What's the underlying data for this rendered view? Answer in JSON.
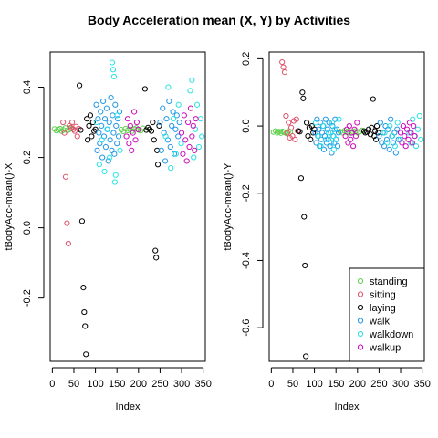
{
  "title": "Body Acceleration mean (X, Y) by Activities",
  "chart_data": [
    {
      "type": "scatter",
      "xlabel": "Index",
      "ylabel": "tBodyAcc-mean()-X",
      "xlim": [
        -5,
        355
      ],
      "ylim": [
        -0.38,
        0.5
      ],
      "xticks": [
        0,
        50,
        100,
        150,
        200,
        250,
        300,
        350
      ],
      "xtick_labels": [
        "0",
        "50",
        "100",
        "150",
        "200",
        "250",
        "300",
        "350"
      ],
      "yticks": [
        -0.2,
        0.0,
        0.2,
        0.4
      ],
      "ytick_labels": [
        "-0.2",
        "0.0",
        "0.2",
        "0.4"
      ],
      "grid": false,
      "legend": false
    },
    {
      "type": "scatter",
      "xlabel": "Index",
      "ylabel": "tBodyAcc-mean()-Y",
      "xlim": [
        -5,
        355
      ],
      "ylim": [
        -0.7,
        0.22
      ],
      "xticks": [
        0,
        50,
        100,
        150,
        200,
        250,
        300,
        350
      ],
      "xtick_labels": [
        "0",
        "50",
        "100",
        "150",
        "200",
        "250",
        "300",
        "350"
      ],
      "yticks": [
        -0.6,
        -0.4,
        -0.2,
        0.0,
        0.2
      ],
      "ytick_labels": [
        "-0.6",
        "-0.4",
        "-0.2",
        "0.0",
        "0.2"
      ],
      "grid": false,
      "legend": "bottom-right"
    }
  ],
  "series": [
    {
      "name": "standing",
      "color": "#61D04F"
    },
    {
      "name": "sitting",
      "color": "#DF536B"
    },
    {
      "name": "laying",
      "color": "#000000"
    },
    {
      "name": "walk",
      "color": "#2297E6"
    },
    {
      "name": "walkdown",
      "color": "#28E2E5"
    },
    {
      "name": "walkup",
      "color": "#CD0BBC"
    }
  ],
  "points": [
    {
      "x": 5,
      "yx": 0.281,
      "yy": -0.018,
      "s": 0
    },
    {
      "x": 10,
      "yx": 0.276,
      "yy": -0.015,
      "s": 0
    },
    {
      "x": 14,
      "yx": 0.279,
      "yy": -0.02,
      "s": 0
    },
    {
      "x": 18,
      "yx": 0.282,
      "yy": -0.017,
      "s": 0
    },
    {
      "x": 22,
      "yx": 0.275,
      "yy": -0.021,
      "s": 0
    },
    {
      "x": 26,
      "yx": 0.278,
      "yy": -0.016,
      "s": 0
    },
    {
      "x": 30,
      "yx": 0.284,
      "yy": -0.019,
      "s": 0
    },
    {
      "x": 35,
      "yx": 0.277,
      "yy": -0.022,
      "s": 0
    },
    {
      "x": 40,
      "yx": 0.28,
      "yy": -0.015,
      "s": 0
    },
    {
      "x": 44,
      "yx": 0.283,
      "yy": -0.018,
      "s": 0
    },
    {
      "x": 160,
      "yx": 0.279,
      "yy": -0.017,
      "s": 0
    },
    {
      "x": 165,
      "yx": 0.274,
      "yy": -0.02,
      "s": 0
    },
    {
      "x": 170,
      "yx": 0.282,
      "yy": -0.014,
      "s": 0
    },
    {
      "x": 175,
      "yx": 0.277,
      "yy": -0.019,
      "s": 0
    },
    {
      "x": 180,
      "yx": 0.28,
      "yy": -0.016,
      "s": 0
    },
    {
      "x": 185,
      "yx": 0.275,
      "yy": -0.021,
      "s": 0
    },
    {
      "x": 190,
      "yx": 0.281,
      "yy": -0.018,
      "s": 0
    },
    {
      "x": 195,
      "yx": 0.284,
      "yy": -0.015,
      "s": 0
    },
    {
      "x": 200,
      "yx": 0.278,
      "yy": -0.02,
      "s": 0
    },
    {
      "x": 205,
      "yx": 0.276,
      "yy": -0.017,
      "s": 0
    },
    {
      "x": 210,
      "yx": 0.283,
      "yy": -0.013,
      "s": 0
    },
    {
      "x": 25,
      "yx": 0.3,
      "yy": 0.19,
      "s": 1
    },
    {
      "x": 28,
      "yx": 0.27,
      "yy": 0.175,
      "s": 1
    },
    {
      "x": 31,
      "yx": 0.145,
      "yy": 0.16,
      "s": 1
    },
    {
      "x": 34,
      "yx": 0.013,
      "yy": 0.03,
      "s": 1
    },
    {
      "x": 37,
      "yx": -0.045,
      "yy": -0.02,
      "s": 1
    },
    {
      "x": 40,
      "yx": 0.29,
      "yy": 0.01,
      "s": 1
    },
    {
      "x": 43,
      "yx": 0.285,
      "yy": -0.035,
      "s": 1
    },
    {
      "x": 46,
      "yx": 0.3,
      "yy": -0.005,
      "s": 1
    },
    {
      "x": 49,
      "yx": 0.28,
      "yy": -0.03,
      "s": 1
    },
    {
      "x": 52,
      "yx": 0.275,
      "yy": 0.015,
      "s": 1
    },
    {
      "x": 55,
      "yx": 0.288,
      "yy": -0.04,
      "s": 1
    },
    {
      "x": 58,
      "yx": 0.26,
      "yy": 0.02,
      "s": 1
    },
    {
      "x": 61,
      "yx": 0.282,
      "yy": -0.015,
      "s": 1
    },
    {
      "x": 63,
      "yx": 0.405,
      "yy": -0.015,
      "s": 2
    },
    {
      "x": 66,
      "yx": 0.278,
      "yy": -0.017,
      "s": 2
    },
    {
      "x": 69,
      "yx": 0.019,
      "yy": -0.155,
      "s": 2
    },
    {
      "x": 72,
      "yx": -0.17,
      "yy": 0.1,
      "s": 2
    },
    {
      "x": 74,
      "yx": -0.24,
      "yy": 0.082,
      "s": 2
    },
    {
      "x": 76,
      "yx": -0.28,
      "yy": -0.27,
      "s": 2
    },
    {
      "x": 78,
      "yx": -0.36,
      "yy": -0.415,
      "s": 2
    },
    {
      "x": 80,
      "yx": 0.31,
      "yy": -0.685,
      "s": 2
    },
    {
      "x": 82,
      "yx": 0.25,
      "yy": 0.01,
      "s": 2
    },
    {
      "x": 85,
      "yx": 0.29,
      "yy": -0.03,
      "s": 2
    },
    {
      "x": 88,
      "yx": 0.32,
      "yy": -0.005,
      "s": 2
    },
    {
      "x": 91,
      "yx": 0.26,
      "yy": -0.04,
      "s": 2
    },
    {
      "x": 94,
      "yx": 0.3,
      "yy": 0.0,
      "s": 2
    },
    {
      "x": 97,
      "yx": 0.275,
      "yy": -0.02,
      "s": 2
    },
    {
      "x": 100,
      "yx": 0.28,
      "yy": -0.01,
      "s": 2
    },
    {
      "x": 215,
      "yx": 0.395,
      "yy": -0.015,
      "s": 2
    },
    {
      "x": 218,
      "yx": 0.278,
      "yy": -0.02,
      "s": 2
    },
    {
      "x": 222,
      "yx": 0.285,
      "yy": -0.018,
      "s": 2
    },
    {
      "x": 226,
      "yx": 0.28,
      "yy": -0.01,
      "s": 2
    },
    {
      "x": 230,
      "yx": 0.275,
      "yy": -0.025,
      "s": 2
    },
    {
      "x": 233,
      "yx": 0.3,
      "yy": -0.005,
      "s": 2
    },
    {
      "x": 236,
      "yx": 0.25,
      "yy": 0.08,
      "s": 2
    },
    {
      "x": 239,
      "yx": -0.065,
      "yy": -0.03,
      "s": 2
    },
    {
      "x": 241,
      "yx": -0.085,
      "yy": -0.015,
      "s": 2
    },
    {
      "x": 243,
      "yx": 0.22,
      "yy": -0.04,
      "s": 2
    },
    {
      "x": 245,
      "yx": 0.18,
      "yy": 0.0,
      "s": 2
    },
    {
      "x": 248,
      "yx": 0.29,
      "yy": -0.02,
      "s": 2
    },
    {
      "x": 102,
      "yx": 0.35,
      "yy": -0.02,
      "s": 3
    },
    {
      "x": 104,
      "yx": 0.22,
      "yy": -0.05,
      "s": 3
    },
    {
      "x": 106,
      "yx": 0.31,
      "yy": 0.02,
      "s": 3
    },
    {
      "x": 108,
      "yx": 0.27,
      "yy": -0.03,
      "s": 3
    },
    {
      "x": 110,
      "yx": 0.24,
      "yy": -0.01,
      "s": 3
    },
    {
      "x": 112,
      "yx": 0.33,
      "yy": -0.06,
      "s": 3
    },
    {
      "x": 114,
      "yx": 0.29,
      "yy": 0.01,
      "s": 3
    },
    {
      "x": 116,
      "yx": 0.2,
      "yy": -0.04,
      "s": 3
    },
    {
      "x": 118,
      "yx": 0.36,
      "yy": -0.02,
      "s": 3
    },
    {
      "x": 120,
      "yx": 0.26,
      "yy": 0.0,
      "s": 3
    },
    {
      "x": 122,
      "yx": 0.31,
      "yy": -0.07,
      "s": 3
    },
    {
      "x": 124,
      "yx": 0.23,
      "yy": -0.03,
      "s": 3
    },
    {
      "x": 126,
      "yx": 0.34,
      "yy": 0.02,
      "s": 3
    },
    {
      "x": 128,
      "yx": 0.28,
      "yy": -0.05,
      "s": 3
    },
    {
      "x": 130,
      "yx": 0.19,
      "yy": -0.01,
      "s": 3
    },
    {
      "x": 132,
      "yx": 0.3,
      "yy": -0.04,
      "s": 3
    },
    {
      "x": 134,
      "yx": 0.25,
      "yy": 0.01,
      "s": 3
    },
    {
      "x": 136,
      "yx": 0.37,
      "yy": -0.06,
      "s": 3
    },
    {
      "x": 138,
      "yx": 0.22,
      "yy": -0.02,
      "s": 3
    },
    {
      "x": 140,
      "yx": 0.32,
      "yy": -0.08,
      "s": 3
    },
    {
      "x": 142,
      "yx": 0.27,
      "yy": 0.0,
      "s": 3
    },
    {
      "x": 144,
      "yx": 0.21,
      "yy": -0.03,
      "s": 3
    },
    {
      "x": 146,
      "yx": 0.35,
      "yy": -0.05,
      "s": 3
    },
    {
      "x": 148,
      "yx": 0.29,
      "yy": 0.02,
      "s": 3
    },
    {
      "x": 150,
      "yx": 0.24,
      "yy": -0.04,
      "s": 3
    },
    {
      "x": 152,
      "yx": 0.31,
      "yy": -0.01,
      "s": 3
    },
    {
      "x": 154,
      "yx": 0.26,
      "yy": -0.06,
      "s": 3
    },
    {
      "x": 156,
      "yx": 0.33,
      "yy": -0.02,
      "s": 3
    },
    {
      "x": 250,
      "yx": 0.3,
      "yy": -0.03,
      "s": 3
    },
    {
      "x": 253,
      "yx": 0.22,
      "yy": 0.01,
      "s": 3
    },
    {
      "x": 256,
      "yx": 0.34,
      "yy": -0.05,
      "s": 3
    },
    {
      "x": 259,
      "yx": 0.27,
      "yy": -0.02,
      "s": 3
    },
    {
      "x": 262,
      "yx": 0.19,
      "yy": -0.06,
      "s": 3
    },
    {
      "x": 265,
      "yx": 0.31,
      "yy": 0.0,
      "s": 3
    },
    {
      "x": 268,
      "yx": 0.25,
      "yy": -0.04,
      "s": 3
    },
    {
      "x": 271,
      "yx": 0.36,
      "yy": -0.01,
      "s": 3
    },
    {
      "x": 274,
      "yx": 0.23,
      "yy": -0.07,
      "s": 3
    },
    {
      "x": 277,
      "yx": 0.29,
      "yy": 0.02,
      "s": 3
    },
    {
      "x": 280,
      "yx": 0.33,
      "yy": -0.03,
      "s": 3
    },
    {
      "x": 283,
      "yx": 0.21,
      "yy": -0.05,
      "s": 3
    },
    {
      "x": 286,
      "yx": 0.28,
      "yy": -0.02,
      "s": 3
    },
    {
      "x": 289,
      "yx": 0.32,
      "yy": -0.08,
      "s": 3
    },
    {
      "x": 292,
      "yx": 0.26,
      "yy": -0.01,
      "s": 3
    },
    {
      "x": 295,
      "yx": 0.3,
      "yy": -0.04,
      "s": 3
    },
    {
      "x": 103,
      "yx": 0.3,
      "yy": 0.01,
      "s": 4
    },
    {
      "x": 109,
      "yx": 0.18,
      "yy": -0.03,
      "s": 4
    },
    {
      "x": 115,
      "yx": 0.25,
      "yy": -0.06,
      "s": 4
    },
    {
      "x": 121,
      "yx": 0.16,
      "yy": 0.0,
      "s": 4
    },
    {
      "x": 127,
      "yx": 0.28,
      "yy": -0.04,
      "s": 4
    },
    {
      "x": 133,
      "yx": 0.2,
      "yy": -0.02,
      "s": 4
    },
    {
      "x": 139,
      "yx": 0.47,
      "yy": -0.05,
      "s": 4
    },
    {
      "x": 141,
      "yx": 0.45,
      "yy": 0.01,
      "s": 4
    },
    {
      "x": 143,
      "yx": 0.43,
      "yy": -0.03,
      "s": 4
    },
    {
      "x": 145,
      "yx": 0.13,
      "yy": -0.07,
      "s": 4
    },
    {
      "x": 147,
      "yx": 0.15,
      "yy": -0.01,
      "s": 4
    },
    {
      "x": 151,
      "yx": 0.32,
      "yy": -0.04,
      "s": 4
    },
    {
      "x": 157,
      "yx": 0.22,
      "yy": 0.02,
      "s": 4
    },
    {
      "x": 263,
      "yx": 0.26,
      "yy": -0.02,
      "s": 4
    },
    {
      "x": 269,
      "yx": 0.4,
      "yy": -0.05,
      "s": 4
    },
    {
      "x": 275,
      "yx": 0.17,
      "yy": 0.0,
      "s": 4
    },
    {
      "x": 281,
      "yx": 0.31,
      "yy": -0.03,
      "s": 4
    },
    {
      "x": 287,
      "yx": 0.21,
      "yy": -0.06,
      "s": 4
    },
    {
      "x": 293,
      "yx": 0.35,
      "yy": 0.01,
      "s": 4
    },
    {
      "x": 299,
      "yx": 0.24,
      "yy": -0.04,
      "s": 4
    },
    {
      "x": 320,
      "yx": 0.39,
      "yy": -0.02,
      "s": 4
    },
    {
      "x": 324,
      "yx": 0.42,
      "yy": -0.05,
      "s": 4
    },
    {
      "x": 328,
      "yx": 0.2,
      "yy": 0.02,
      "s": 4
    },
    {
      "x": 332,
      "yx": 0.28,
      "yy": -0.03,
      "s": 4
    },
    {
      "x": 336,
      "yx": 0.35,
      "yy": -0.06,
      "s": 4
    },
    {
      "x": 340,
      "yx": 0.23,
      "yy": -0.01,
      "s": 4
    },
    {
      "x": 344,
      "yx": 0.31,
      "yy": 0.03,
      "s": 4
    },
    {
      "x": 347,
      "yx": 0.26,
      "yy": -0.04,
      "s": 4
    },
    {
      "x": 172,
      "yx": 0.26,
      "yy": -0.03,
      "s": 5
    },
    {
      "x": 175,
      "yx": 0.31,
      "yy": -0.01,
      "s": 5
    },
    {
      "x": 178,
      "yx": 0.24,
      "yy": -0.05,
      "s": 5
    },
    {
      "x": 181,
      "yx": 0.29,
      "yy": 0.0,
      "s": 5
    },
    {
      "x": 184,
      "yx": 0.22,
      "yy": -0.04,
      "s": 5
    },
    {
      "x": 187,
      "yx": 0.27,
      "yy": -0.02,
      "s": 5
    },
    {
      "x": 190,
      "yx": 0.33,
      "yy": -0.06,
      "s": 5
    },
    {
      "x": 193,
      "yx": 0.25,
      "yy": -0.01,
      "s": 5
    },
    {
      "x": 196,
      "yx": 0.3,
      "yy": -0.03,
      "s": 5
    },
    {
      "x": 199,
      "yx": 0.28,
      "yy": 0.01,
      "s": 5
    },
    {
      "x": 300,
      "yx": 0.27,
      "yy": -0.02,
      "s": 5
    },
    {
      "x": 303,
      "yx": 0.21,
      "yy": -0.05,
      "s": 5
    },
    {
      "x": 306,
      "yx": 0.32,
      "yy": 0.0,
      "s": 5
    },
    {
      "x": 309,
      "yx": 0.25,
      "yy": -0.03,
      "s": 5
    },
    {
      "x": 312,
      "yx": 0.19,
      "yy": -0.06,
      "s": 5
    },
    {
      "x": 315,
      "yx": 0.3,
      "yy": -0.01,
      "s": 5
    },
    {
      "x": 318,
      "yx": 0.23,
      "yy": -0.04,
      "s": 5
    },
    {
      "x": 321,
      "yx": 0.34,
      "yy": 0.01,
      "s": 5
    },
    {
      "x": 324,
      "yx": 0.26,
      "yy": -0.02,
      "s": 5
    },
    {
      "x": 327,
      "yx": 0.29,
      "yy": -0.05,
      "s": 5
    },
    {
      "x": 330,
      "yx": 0.22,
      "yy": 0.0,
      "s": 5
    },
    {
      "x": 333,
      "yx": 0.31,
      "yy": -0.03,
      "s": 5
    }
  ]
}
